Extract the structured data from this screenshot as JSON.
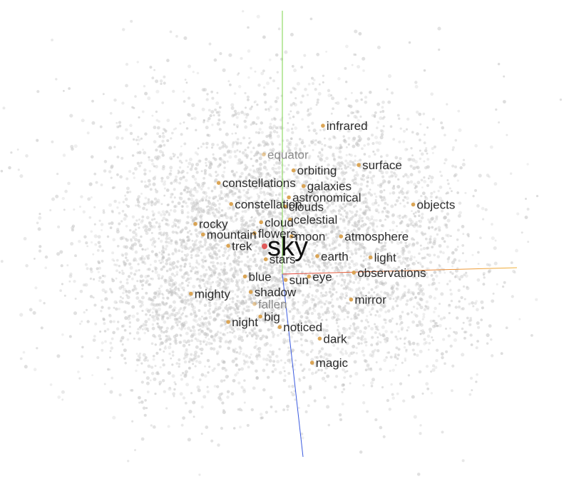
{
  "chart_data": {
    "type": "scatter",
    "title": "",
    "xlabel": "",
    "ylabel": "",
    "query": {
      "word": "sky",
      "x": 0.0,
      "y": 0.0,
      "color": "#e05a5a"
    },
    "neighbor_color": "#d9a04c",
    "background_color": "#c4c4c4",
    "axes": {
      "x_color": "#e0403a",
      "x_end_color": "#f0b23a",
      "y_color": "#7bd34a",
      "z_color": "#3a5ae0"
    },
    "neighbors": [
      {
        "word": "infrared",
        "x": 2.38,
        "y": 4.91,
        "faded": false
      },
      {
        "word": "equator",
        "x": -0.03,
        "y": 3.74,
        "faded": true
      },
      {
        "word": "surface",
        "x": 3.84,
        "y": 3.31,
        "faded": false
      },
      {
        "word": "orbiting",
        "x": 1.18,
        "y": 3.09,
        "faded": false
      },
      {
        "word": "constellations",
        "x": -1.87,
        "y": 2.58,
        "faded": false
      },
      {
        "word": "galaxies",
        "x": 1.59,
        "y": 2.45,
        "faded": false
      },
      {
        "word": "astronomical",
        "x": 0.99,
        "y": 1.99,
        "faded": false
      },
      {
        "word": "constellation",
        "x": -1.36,
        "y": 1.72,
        "faded": false
      },
      {
        "word": "clouds",
        "x": 0.84,
        "y": 1.62,
        "faded": false
      },
      {
        "word": "objects",
        "x": 6.06,
        "y": 1.7,
        "faded": false
      },
      {
        "word": "celestial",
        "x": 1.04,
        "y": 1.09,
        "faded": false
      },
      {
        "word": "cloud",
        "x": -0.14,
        "y": 0.98,
        "faded": false
      },
      {
        "word": "rocky",
        "x": -2.82,
        "y": 0.91,
        "faded": false
      },
      {
        "word": "flowers",
        "x": -0.41,
        "y": 0.53,
        "faded": false
      },
      {
        "word": "mountain",
        "x": -2.51,
        "y": 0.48,
        "faded": false
      },
      {
        "word": "moon",
        "x": 1.1,
        "y": 0.4,
        "faded": false
      },
      {
        "word": "atmosphere",
        "x": 3.12,
        "y": 0.4,
        "faded": false
      },
      {
        "word": "trek",
        "x": -1.48,
        "y": 0.02,
        "faded": false
      },
      {
        "word": "stars",
        "x": 0.05,
        "y": -0.53,
        "faded": false
      },
      {
        "word": "earth",
        "x": 2.15,
        "y": -0.4,
        "faded": false
      },
      {
        "word": "light",
        "x": 4.32,
        "y": -0.45,
        "faded": false
      },
      {
        "word": "observations",
        "x": 3.64,
        "y": -1.07,
        "faded": false
      },
      {
        "word": "blue",
        "x": -0.8,
        "y": -1.23,
        "faded": false
      },
      {
        "word": "sun",
        "x": 0.86,
        "y": -1.37,
        "faded": false
      },
      {
        "word": "eye",
        "x": 1.81,
        "y": -1.23,
        "faded": false
      },
      {
        "word": "mighty",
        "x": -3.0,
        "y": -1.93,
        "faded": false
      },
      {
        "word": "shadow",
        "x": -0.56,
        "y": -1.86,
        "faded": false
      },
      {
        "word": "mirror",
        "x": 3.53,
        "y": -2.17,
        "faded": false
      },
      {
        "word": "fallen",
        "x": -0.41,
        "y": -2.35,
        "faded": true
      },
      {
        "word": "big",
        "x": -0.17,
        "y": -2.86,
        "faded": false
      },
      {
        "word": "night",
        "x": -1.48,
        "y": -3.08,
        "faded": false
      },
      {
        "word": "noticed",
        "x": 0.62,
        "y": -3.29,
        "faded": false
      },
      {
        "word": "dark",
        "x": 2.25,
        "y": -3.76,
        "faded": false
      },
      {
        "word": "magic",
        "x": 1.94,
        "y": -4.74,
        "faded": false
      }
    ]
  }
}
